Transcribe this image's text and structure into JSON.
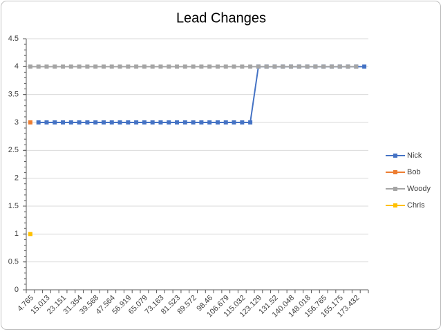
{
  "chart_data": {
    "type": "line",
    "title": "Lead Changes",
    "categories": [
      "4.765",
      null,
      "15.013",
      null,
      "23.151",
      null,
      "31.354",
      null,
      "39.568",
      null,
      "47.564",
      null,
      "56.919",
      null,
      "65.079",
      null,
      "73.163",
      null,
      "81.523",
      null,
      "89.572",
      null,
      "98.46",
      null,
      "106.679",
      null,
      "115.032",
      null,
      "123.129",
      null,
      "131.52",
      null,
      "140.048",
      null,
      "148.018",
      null,
      "156.765",
      null,
      "165.175",
      null,
      "173.432",
      null
    ],
    "series": [
      {
        "name": "Nick",
        "color": "#4472c4",
        "values": [
          null,
          3,
          3,
          3,
          3,
          3,
          3,
          3,
          3,
          3,
          3,
          3,
          3,
          3,
          3,
          3,
          3,
          3,
          3,
          3,
          3,
          3,
          3,
          3,
          3,
          3,
          3,
          3,
          4,
          4,
          4,
          4,
          4,
          4,
          4,
          4,
          4,
          4,
          4,
          4,
          4,
          4
        ]
      },
      {
        "name": "Bob",
        "color": "#ed7d31",
        "values": [
          3,
          null,
          null,
          null,
          null,
          null,
          null,
          null,
          null,
          null,
          null,
          null,
          null,
          null,
          null,
          null,
          null,
          null,
          null,
          null,
          null,
          null,
          null,
          null,
          null,
          null,
          null,
          null,
          null,
          null,
          null,
          null,
          null,
          null,
          null,
          null,
          null,
          null,
          null,
          null,
          null,
          null
        ]
      },
      {
        "name": "Woody",
        "color": "#a5a5a5",
        "values": [
          4,
          4,
          4,
          4,
          4,
          4,
          4,
          4,
          4,
          4,
          4,
          4,
          4,
          4,
          4,
          4,
          4,
          4,
          4,
          4,
          4,
          4,
          4,
          4,
          4,
          4,
          4,
          4,
          4,
          4,
          4,
          4,
          4,
          4,
          4,
          4,
          4,
          4,
          4,
          4,
          4,
          null
        ]
      },
      {
        "name": "Chris",
        "color": "#ffc000",
        "values": [
          1,
          null,
          null,
          null,
          null,
          null,
          null,
          null,
          null,
          null,
          null,
          null,
          null,
          null,
          null,
          null,
          null,
          null,
          null,
          null,
          null,
          null,
          null,
          null,
          null,
          null,
          null,
          null,
          null,
          null,
          null,
          null,
          null,
          null,
          null,
          null,
          null,
          null,
          null,
          null,
          null,
          null
        ]
      }
    ],
    "ylim": [
      0,
      4.5
    ],
    "yticks": [
      0,
      0.5,
      1,
      1.5,
      2,
      2.5,
      3,
      3.5,
      4,
      4.5
    ],
    "grid": true,
    "legend": "right"
  }
}
